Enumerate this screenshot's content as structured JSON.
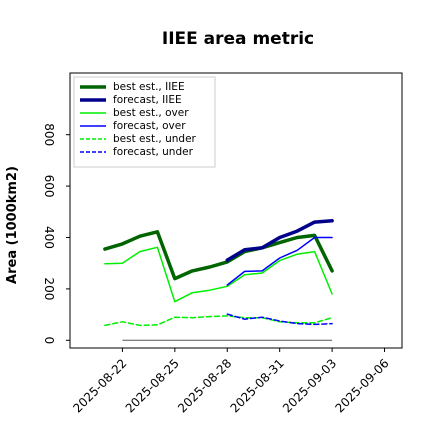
{
  "chart_data": {
    "type": "line",
    "title": "IIEE area metric",
    "xlabel": "",
    "ylabel": "Area (1000km2)",
    "x_ticks": [
      "2025-08-22",
      "2025-08-25",
      "2025-08-28",
      "2025-08-31",
      "2025-09-03",
      "2025-09-06"
    ],
    "highlight_tick": "2025-08-28",
    "highlight_color": "#228b22",
    "y_ticks": [
      "0",
      "200",
      "400",
      "600",
      "800"
    ],
    "xlim": [
      "2025-08-19",
      "2025-09-07"
    ],
    "ylim": [
      -30,
      1040
    ],
    "grid": false,
    "legend_position": "top-left",
    "zero_line": {
      "start": "2025-08-22",
      "end": "2025-09-03",
      "value": 0
    },
    "series": [
      {
        "name": "best est., IIEE",
        "color": "#006400",
        "style": "solid",
        "weight": "thick",
        "x": [
          "2025-08-21",
          "2025-08-22",
          "2025-08-23",
          "2025-08-24",
          "2025-08-25",
          "2025-08-26",
          "2025-08-27",
          "2025-08-28",
          "2025-08-29",
          "2025-08-30",
          "2025-08-31",
          "2025-09-01",
          "2025-09-02",
          "2025-09-03"
        ],
        "y": [
          355,
          375,
          405,
          422,
          240,
          270,
          285,
          305,
          345,
          360,
          380,
          400,
          408,
          270
        ]
      },
      {
        "name": "forecast, IIEE",
        "color": "#00008b",
        "style": "solid",
        "weight": "thick",
        "x": [
          "2025-08-28",
          "2025-08-29",
          "2025-08-30",
          "2025-08-31",
          "2025-09-01",
          "2025-09-02",
          "2025-09-03"
        ],
        "y": [
          312,
          352,
          360,
          400,
          425,
          460,
          465
        ]
      },
      {
        "name": "best est., over",
        "color": "#00ee00",
        "style": "solid",
        "weight": "thin",
        "x": [
          "2025-08-21",
          "2025-08-22",
          "2025-08-23",
          "2025-08-24",
          "2025-08-25",
          "2025-08-26",
          "2025-08-27",
          "2025-08-28",
          "2025-08-29",
          "2025-08-30",
          "2025-08-31",
          "2025-09-01",
          "2025-09-02",
          "2025-09-03"
        ],
        "y": [
          298,
          300,
          345,
          362,
          150,
          185,
          195,
          210,
          255,
          262,
          310,
          335,
          345,
          180
        ]
      },
      {
        "name": "forecast, over",
        "color": "#0000ff",
        "style": "solid",
        "weight": "thin",
        "x": [
          "2025-08-28",
          "2025-08-29",
          "2025-08-30",
          "2025-08-31",
          "2025-09-01",
          "2025-09-02",
          "2025-09-03"
        ],
        "y": [
          215,
          268,
          270,
          320,
          350,
          400,
          400
        ]
      },
      {
        "name": "best est., under",
        "color": "#00ee00",
        "style": "dashed",
        "weight": "thin",
        "x": [
          "2025-08-21",
          "2025-08-22",
          "2025-08-23",
          "2025-08-24",
          "2025-08-25",
          "2025-08-26",
          "2025-08-27",
          "2025-08-28",
          "2025-08-29",
          "2025-08-30",
          "2025-08-31",
          "2025-09-01",
          "2025-09-02",
          "2025-09-03"
        ],
        "y": [
          58,
          72,
          58,
          60,
          90,
          88,
          92,
          95,
          88,
          88,
          72,
          68,
          68,
          88
        ]
      },
      {
        "name": "forecast, under",
        "color": "#0000ff",
        "style": "dashed",
        "weight": "thin",
        "x": [
          "2025-08-28",
          "2025-08-29",
          "2025-08-30",
          "2025-08-31",
          "2025-09-01",
          "2025-09-02",
          "2025-09-03"
        ],
        "y": [
          102,
          82,
          90,
          75,
          65,
          62,
          65
        ]
      }
    ]
  }
}
